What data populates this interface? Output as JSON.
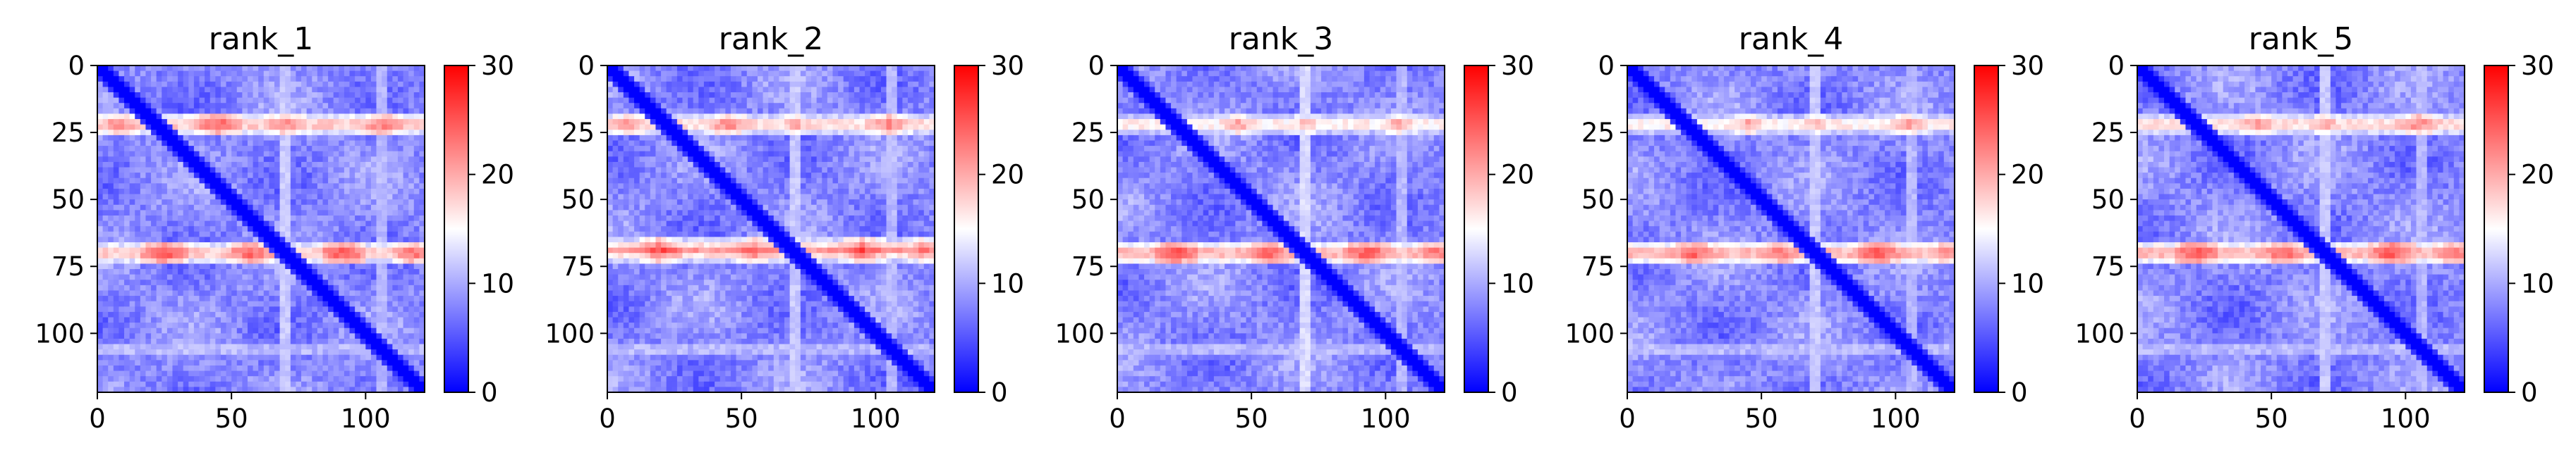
{
  "chart_data": [
    {
      "type": "heatmap",
      "title": "rank_1",
      "xticks": [
        0,
        50,
        100
      ],
      "yticks": [
        0,
        25,
        50,
        75,
        100
      ],
      "xlim": [
        0,
        122
      ],
      "ylim": [
        122,
        0
      ],
      "colorbar": {
        "min": 0,
        "max": 30,
        "ticks": [
          0,
          10,
          20,
          30
        ],
        "colormap": "bwr"
      },
      "diagonal_value": 0,
      "background_value": 8,
      "features": {
        "hot_rows": [
          {
            "row": 22,
            "value": 20,
            "peaks": [
              {
                "col": 8,
                "value": 24
              },
              {
                "col": 45,
                "value": 26
              },
              {
                "col": 70,
                "value": 24
              },
              {
                "col": 107,
                "value": 25
              }
            ]
          },
          {
            "row": 70,
            "value": 20,
            "peaks": [
              {
                "col": 25,
                "value": 27
              },
              {
                "col": 57,
                "value": 26
              },
              {
                "col": 92,
                "value": 27
              },
              {
                "col": 118,
                "value": 25
              }
            ]
          },
          {
            "row": 106,
            "value": 13,
            "peaks": []
          }
        ],
        "bright_columns": [
          {
            "col": 70,
            "value": 13
          },
          {
            "col": 106,
            "value": 12
          }
        ]
      }
    },
    {
      "type": "heatmap",
      "title": "rank_2",
      "xticks": [
        0,
        50,
        100
      ],
      "yticks": [
        0,
        25,
        50,
        75,
        100
      ],
      "xlim": [
        0,
        122
      ],
      "ylim": [
        122,
        0
      ],
      "colorbar": {
        "min": 0,
        "max": 30,
        "ticks": [
          0,
          10,
          20,
          30
        ],
        "colormap": "bwr"
      },
      "diagonal_value": 0,
      "background_value": 8,
      "features": {
        "hot_rows": [
          {
            "row": 22,
            "value": 19,
            "peaks": [
              {
                "col": 8,
                "value": 23
              },
              {
                "col": 45,
                "value": 24
              },
              {
                "col": 70,
                "value": 22
              },
              {
                "col": 105,
                "value": 24
              }
            ]
          },
          {
            "row": 69,
            "value": 21,
            "peaks": [
              {
                "col": 20,
                "value": 26
              },
              {
                "col": 55,
                "value": 25
              },
              {
                "col": 95,
                "value": 26
              },
              {
                "col": 118,
                "value": 24
              }
            ]
          },
          {
            "row": 106,
            "value": 13,
            "peaks": []
          }
        ],
        "bright_columns": [
          {
            "col": 70,
            "value": 13
          },
          {
            "col": 106,
            "value": 12
          }
        ]
      }
    },
    {
      "type": "heatmap",
      "title": "rank_3",
      "xticks": [
        0,
        50,
        100
      ],
      "yticks": [
        0,
        25,
        50,
        75,
        100
      ],
      "xlim": [
        0,
        122
      ],
      "ylim": [
        122,
        0
      ],
      "colorbar": {
        "min": 0,
        "max": 30,
        "ticks": [
          0,
          10,
          20,
          30
        ],
        "colormap": "bwr"
      },
      "diagonal_value": 0,
      "background_value": 8,
      "features": {
        "hot_rows": [
          {
            "row": 22,
            "value": 18,
            "peaks": [
              {
                "col": 45,
                "value": 22
              },
              {
                "col": 70,
                "value": 21
              },
              {
                "col": 105,
                "value": 22
              }
            ]
          },
          {
            "row": 70,
            "value": 21,
            "peaks": [
              {
                "col": 22,
                "value": 27
              },
              {
                "col": 57,
                "value": 26
              },
              {
                "col": 93,
                "value": 27
              },
              {
                "col": 118,
                "value": 25
              }
            ]
          },
          {
            "row": 106,
            "value": 13,
            "peaks": []
          }
        ],
        "bright_columns": [
          {
            "col": 70,
            "value": 14
          },
          {
            "col": 106,
            "value": 12
          }
        ]
      }
    },
    {
      "type": "heatmap",
      "title": "rank_4",
      "xticks": [
        0,
        50,
        100
      ],
      "yticks": [
        0,
        25,
        50,
        75,
        100
      ],
      "xlim": [
        0,
        122
      ],
      "ylim": [
        122,
        0
      ],
      "colorbar": {
        "min": 0,
        "max": 30,
        "ticks": [
          0,
          10,
          20,
          30
        ],
        "colormap": "bwr"
      },
      "diagonal_value": 0,
      "background_value": 8,
      "features": {
        "hot_rows": [
          {
            "row": 22,
            "value": 18,
            "peaks": [
              {
                "col": 45,
                "value": 22
              },
              {
                "col": 70,
                "value": 21
              },
              {
                "col": 105,
                "value": 22
              }
            ]
          },
          {
            "row": 70,
            "value": 21,
            "peaks": [
              {
                "col": 25,
                "value": 26
              },
              {
                "col": 57,
                "value": 25
              },
              {
                "col": 93,
                "value": 27
              },
              {
                "col": 118,
                "value": 24
              }
            ]
          },
          {
            "row": 106,
            "value": 13,
            "peaks": []
          }
        ],
        "bright_columns": [
          {
            "col": 70,
            "value": 13
          },
          {
            "col": 106,
            "value": 12
          }
        ]
      }
    },
    {
      "type": "heatmap",
      "title": "rank_5",
      "xticks": [
        0,
        50,
        100
      ],
      "yticks": [
        0,
        25,
        50,
        75,
        100
      ],
      "xlim": [
        0,
        122
      ],
      "ylim": [
        122,
        0
      ],
      "colorbar": {
        "min": 0,
        "max": 30,
        "ticks": [
          0,
          10,
          20,
          30
        ],
        "colormap": "bwr"
      },
      "diagonal_value": 0,
      "background_value": 8,
      "features": {
        "hot_rows": [
          {
            "row": 22,
            "value": 19,
            "peaks": [
              {
                "col": 45,
                "value": 23
              },
              {
                "col": 70,
                "value": 22
              },
              {
                "col": 105,
                "value": 24
              }
            ]
          },
          {
            "row": 70,
            "value": 21,
            "peaks": [
              {
                "col": 22,
                "value": 27
              },
              {
                "col": 55,
                "value": 26
              },
              {
                "col": 95,
                "value": 27
              },
              {
                "col": 118,
                "value": 25
              }
            ]
          },
          {
            "row": 106,
            "value": 13,
            "peaks": []
          }
        ],
        "bright_columns": [
          {
            "col": 70,
            "value": 13
          },
          {
            "col": 106,
            "value": 12
          }
        ]
      }
    }
  ]
}
